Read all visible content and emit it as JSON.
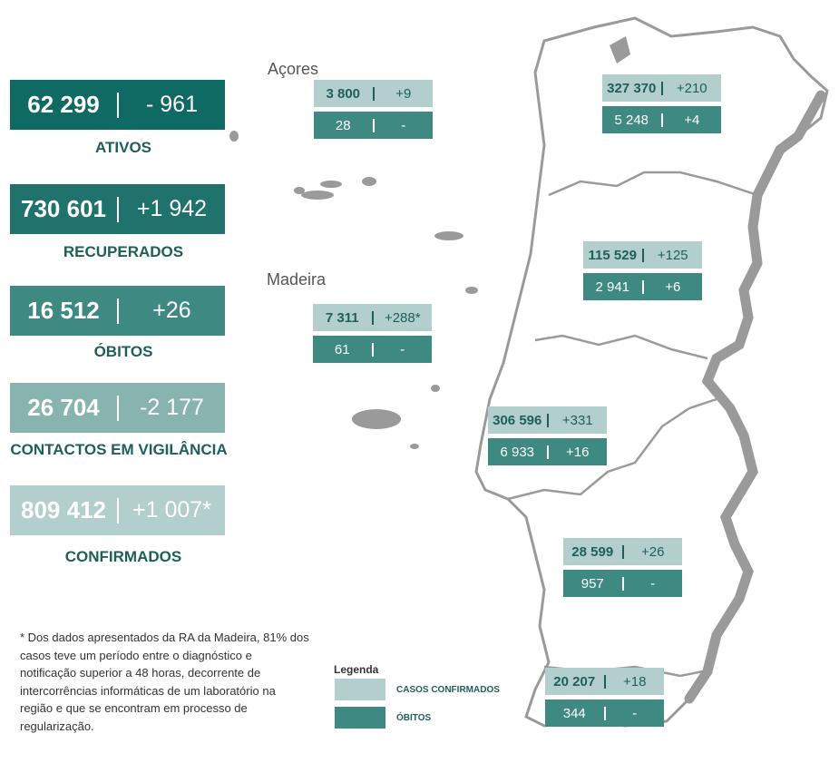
{
  "colors": {
    "ativos": "#0f6a63",
    "recuperados": "#1f736c",
    "obitos": "#3e8a83",
    "contactos": "#88b4b0",
    "confirmados": "#b3cfcd",
    "label_text": "#1e5f5a",
    "map_fill": "#9a9a9a"
  },
  "kpis": [
    {
      "value": "62 299",
      "delta": "- 961",
      "label": "ATIVOS"
    },
    {
      "value": "730 601",
      "delta": "+1 942",
      "label": "RECUPERADOS"
    },
    {
      "value": "16 512",
      "delta": "+26",
      "label": "ÓBITOS"
    },
    {
      "value": "26 704",
      "delta": "-2 177",
      "label": "CONTACTOS EM VIGILÂNCIA"
    },
    {
      "value": "809 412",
      "delta": "+1 007*",
      "label": "CONFIRMADOS"
    }
  ],
  "islands": {
    "acores_label": "Açores",
    "madeira_label": "Madeira"
  },
  "regions": {
    "acores": {
      "cases": "3 800",
      "cases_delta": "+9",
      "deaths": "28",
      "deaths_delta": "-"
    },
    "madeira": {
      "cases": "7 311",
      "cases_delta": "+288*",
      "deaths": "61",
      "deaths_delta": "-"
    },
    "norte": {
      "cases": "327 370",
      "cases_delta": "+210",
      "deaths": "5 248",
      "deaths_delta": "+4"
    },
    "centro": {
      "cases": "115 529",
      "cases_delta": "+125",
      "deaths": "2 941",
      "deaths_delta": "+6"
    },
    "lvt": {
      "cases": "306 596",
      "cases_delta": "+331",
      "deaths": "6 933",
      "deaths_delta": "+16"
    },
    "alentejo": {
      "cases": "28 599",
      "cases_delta": "+26",
      "deaths": "957",
      "deaths_delta": "-"
    },
    "algarve": {
      "cases": "20 207",
      "cases_delta": "+18",
      "deaths": "344",
      "deaths_delta": "-"
    }
  },
  "note": "* Dos dados apresentados da RA da Madeira, 81% dos casos teve um período entre o diagnóstico e notificação superior a 48 horas, decorrente de intercorrências informáticas de um laboratório na região e que se encontram em processo de regularização.",
  "legend": {
    "title": "Legenda",
    "cases": "CASOS CONFIRMADOS",
    "deaths": "ÓBITOS"
  }
}
